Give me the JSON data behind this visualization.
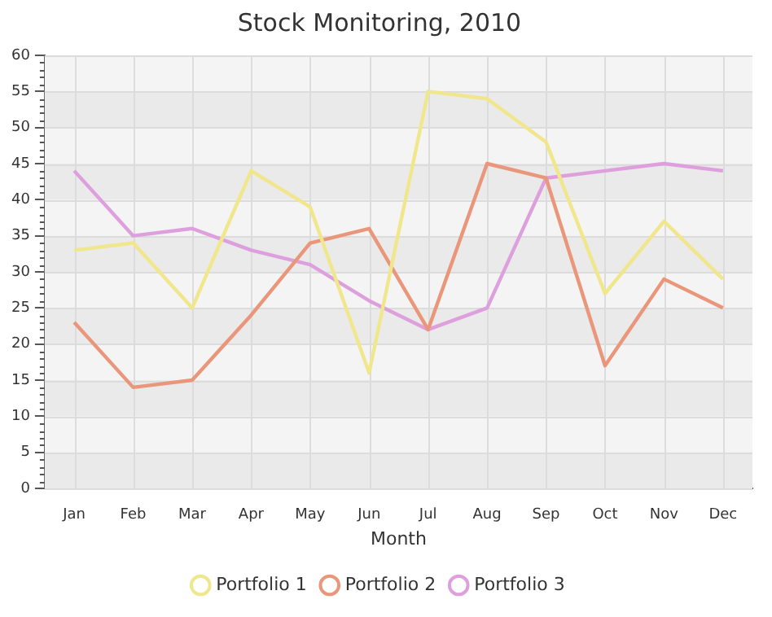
{
  "chart_data": {
    "type": "line",
    "title": "Stock Monitoring, 2010",
    "xlabel": "Month",
    "categories": [
      "Jan",
      "Feb",
      "Mar",
      "Apr",
      "May",
      "Jun",
      "Jul",
      "Aug",
      "Sep",
      "Oct",
      "Nov",
      "Dec"
    ],
    "series": [
      {
        "name": "Portfolio 1",
        "color": "#f0e68c",
        "values": [
          33,
          34,
          25,
          44,
          39,
          16,
          55,
          54,
          48,
          27,
          37,
          29
        ]
      },
      {
        "name": "Portfolio 2",
        "color": "#e9967a",
        "values": [
          23,
          14,
          15,
          24,
          34,
          36,
          22,
          45,
          43,
          17,
          29,
          25
        ]
      },
      {
        "name": "Portfolio 3",
        "color": "#dda0dd",
        "values": [
          44,
          35,
          36,
          33,
          31,
          26,
          22,
          25,
          43,
          44,
          45,
          44
        ]
      }
    ],
    "ylim": [
      0,
      60
    ],
    "yticks": [
      0,
      5,
      10,
      15,
      20,
      25,
      30,
      35,
      40,
      45,
      50,
      55,
      60
    ],
    "grid": true,
    "legend": "bottom",
    "marker": "none",
    "line_style": "solid"
  }
}
